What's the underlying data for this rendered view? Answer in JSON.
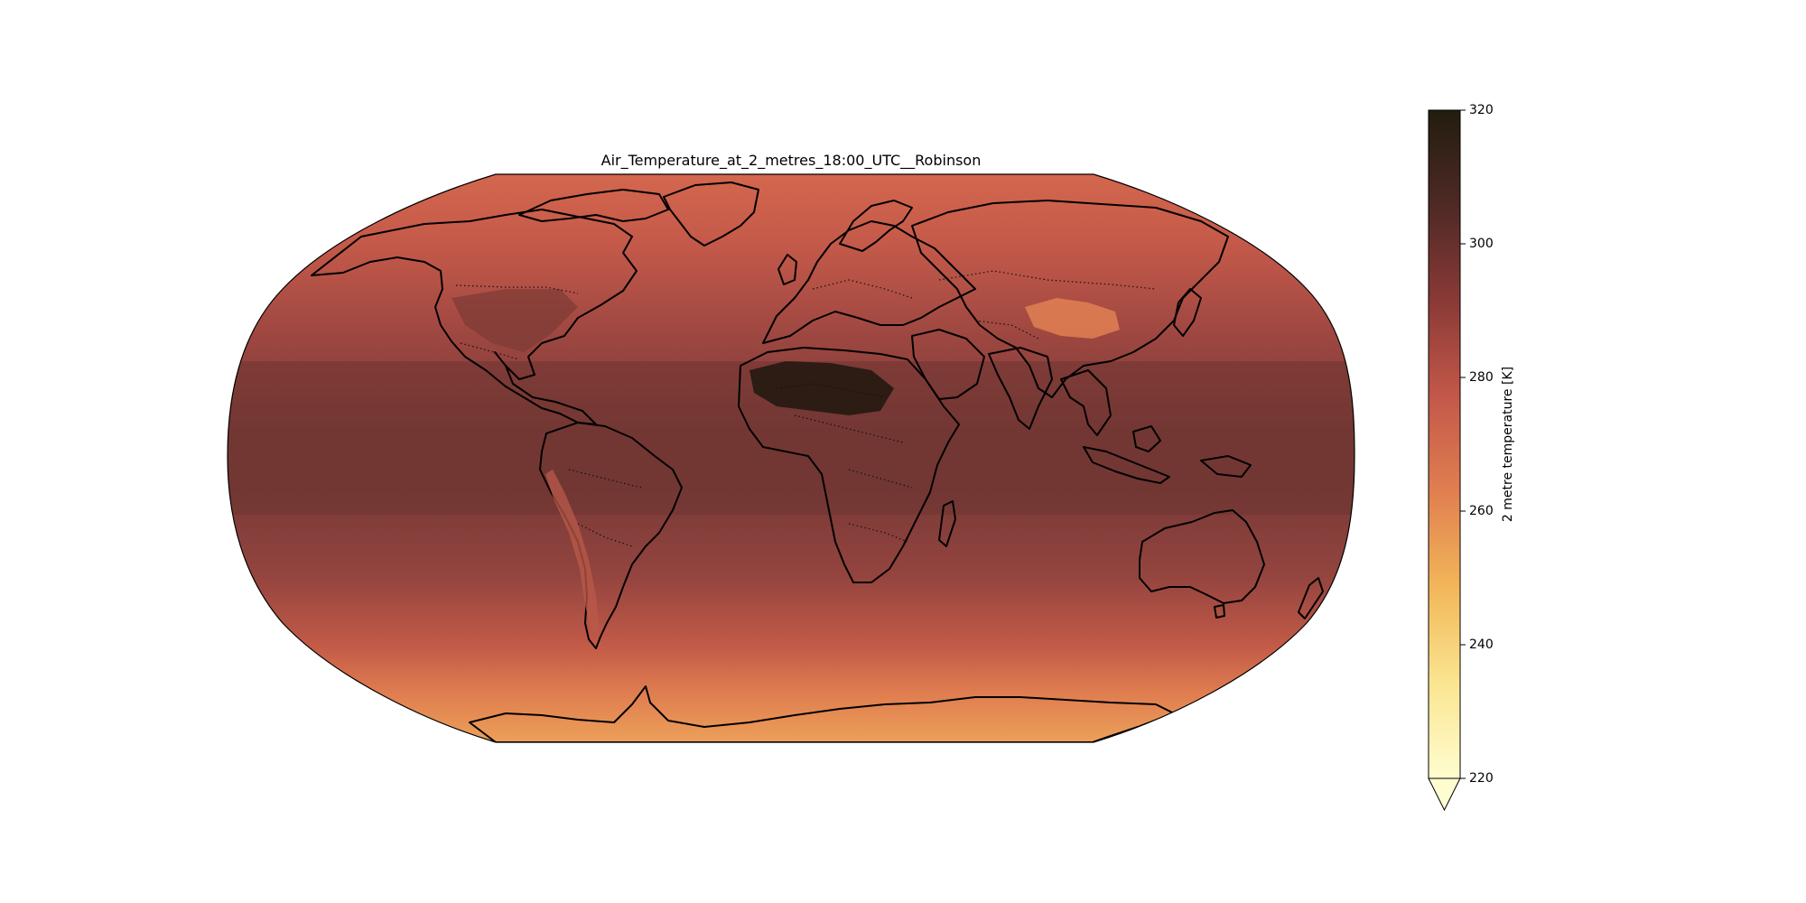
{
  "map": {
    "title": "Air_Temperature_at_2_metres_18:00_UTC__Robinson",
    "projection": "robinson",
    "variable": "2 metre temperature",
    "units": "K"
  },
  "colorbar": {
    "label": "2 metre temperature [K]",
    "min": 220,
    "max": 320,
    "extend": "min",
    "ticks": [
      "220",
      "240",
      "260",
      "280",
      "300",
      "320"
    ],
    "colors": [
      "#fffdd0",
      "#fbe590",
      "#f2b659",
      "#e07f50",
      "#c3584a",
      "#8a3a36",
      "#4f2925",
      "#211d0e"
    ]
  },
  "legend": {
    "regions": [
      {
        "name": "north-america"
      },
      {
        "name": "greenland"
      },
      {
        "name": "south-america"
      },
      {
        "name": "europe"
      },
      {
        "name": "africa"
      },
      {
        "name": "madagascar"
      },
      {
        "name": "asia"
      },
      {
        "name": "arabia"
      },
      {
        "name": "india"
      },
      {
        "name": "australia"
      },
      {
        "name": "new-zealand"
      },
      {
        "name": "antarctica"
      },
      {
        "name": "uk"
      },
      {
        "name": "japan"
      },
      {
        "name": "indonesia"
      },
      {
        "name": "new-guinea"
      }
    ]
  }
}
